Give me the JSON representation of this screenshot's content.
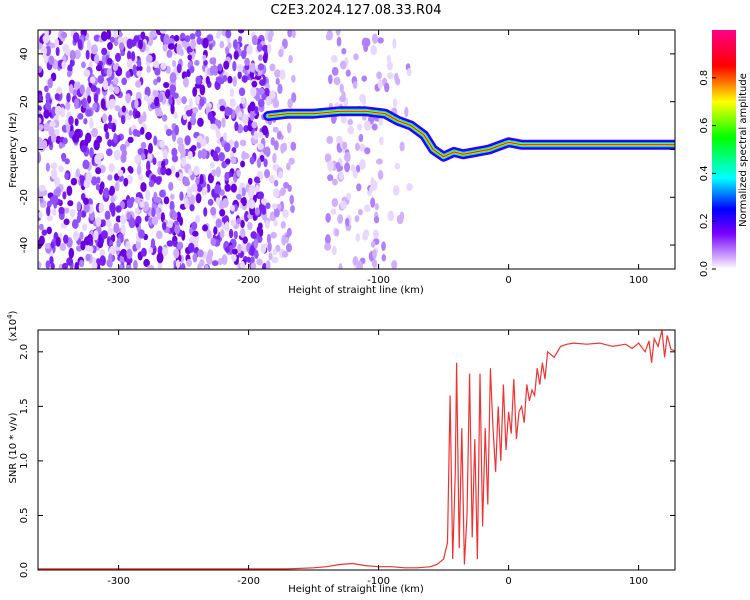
{
  "figure": {
    "title": "C2E3.2024.127.08.33.R04"
  },
  "chart_data": [
    {
      "type": "heatmap",
      "xlabel": "Height of straight line (km)",
      "ylabel": "Frequency (Hz)",
      "xlim": [
        -362,
        128
      ],
      "ylim": [
        -50,
        50
      ],
      "x_ticks": [
        "-300",
        "-200",
        "-100",
        "0",
        "100"
      ],
      "y_ticks": [
        "-40",
        "-20",
        "0",
        "20",
        "40"
      ],
      "colorbar": {
        "label": "Normalized spectral amplitude",
        "range": [
          0.0,
          1.0
        ],
        "ticks": [
          "0.0",
          "0.2",
          "0.4",
          "0.6",
          "0.8"
        ],
        "colormap": [
          "#ffffff",
          "#8800ff",
          "#0000ff",
          "#00ffff",
          "#00ff00",
          "#ffff00",
          "#ff0000",
          "#ff0088"
        ]
      },
      "ridge": {
        "x": [
          -185,
          -170,
          -150,
          -130,
          -110,
          -95,
          -85,
          -75,
          -65,
          -58,
          -50,
          -42,
          -35,
          -25,
          -15,
          -5,
          0,
          10,
          30,
          60,
          90,
          110,
          128
        ],
        "y": [
          14,
          15,
          15,
          16,
          16,
          15,
          12,
          10,
          6,
          0,
          -3,
          -1,
          -2,
          -1,
          0,
          2,
          3,
          2,
          2,
          2,
          2,
          2,
          2
        ]
      }
    },
    {
      "type": "line",
      "xlabel": "Height of straight line (km)",
      "ylabel": "SNR (10 * v/v)",
      "y_multiplier": "(x10",
      "y_exponent": "4",
      "xlim": [
        -362,
        128
      ],
      "ylim": [
        0.0,
        2.2
      ],
      "x_ticks": [
        "-300",
        "-200",
        "-100",
        "0",
        "100"
      ],
      "y_ticks": [
        "0.0",
        "0.5",
        "1.0",
        "1.5",
        "2.0"
      ],
      "series": [
        {
          "color": "#ee3333",
          "x": [
            -362,
            -300,
            -250,
            -200,
            -170,
            -150,
            -140,
            -130,
            -120,
            -110,
            -100,
            -90,
            -80,
            -70,
            -60,
            -55,
            -50,
            -47,
            -45,
            -43,
            -41,
            -40,
            -38,
            -36,
            -34,
            -32,
            -30,
            -28,
            -26,
            -24,
            -22,
            -20,
            -18,
            -16,
            -14,
            -12,
            -10,
            -8,
            -6,
            -4,
            -2,
            0,
            2,
            4,
            6,
            8,
            10,
            12,
            14,
            16,
            18,
            20,
            22,
            24,
            26,
            28,
            30,
            35,
            40,
            45,
            50,
            60,
            70,
            80,
            90,
            95,
            100,
            105,
            108,
            110,
            112,
            115,
            118,
            120,
            122,
            125,
            128
          ],
          "y": [
            0.01,
            0.01,
            0.01,
            0.01,
            0.01,
            0.02,
            0.03,
            0.05,
            0.06,
            0.04,
            0.03,
            0.03,
            0.02,
            0.02,
            0.03,
            0.05,
            0.1,
            0.25,
            1.6,
            0.1,
            0.9,
            1.9,
            0.2,
            1.3,
            0.05,
            0.5,
            1.8,
            0.3,
            1.2,
            0.1,
            1.8,
            0.4,
            1.3,
            0.6,
            1.85,
            1.3,
            0.9,
            1.5,
            1.0,
            1.7,
            1.1,
            1.45,
            1.25,
            1.75,
            1.2,
            1.45,
            1.5,
            1.35,
            1.7,
            1.55,
            1.65,
            1.6,
            1.85,
            1.7,
            1.9,
            1.75,
            2.0,
            1.95,
            2.05,
            2.07,
            2.08,
            2.07,
            2.08,
            2.05,
            2.07,
            2.03,
            2.08,
            2.0,
            2.1,
            1.9,
            2.12,
            2.05,
            2.2,
            1.95,
            2.15,
            2.02,
            2.01
          ]
        }
      ]
    }
  ]
}
